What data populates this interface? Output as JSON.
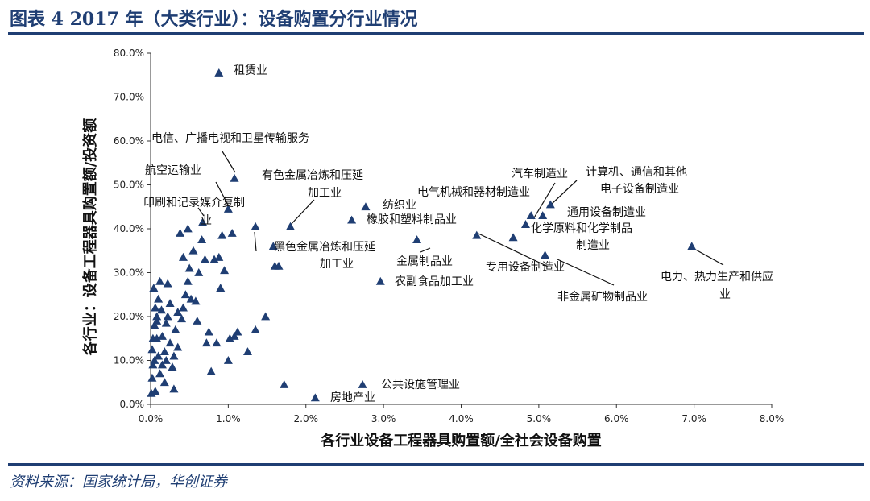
{
  "header": {
    "title": "图表 4   2017 年（大类行业）：设备购置分行业情况"
  },
  "footer": {
    "source": "资料来源：国家统计局，华创证券"
  },
  "chart_data": {
    "type": "scatter",
    "xlabel": "各行业设备工程器具购置额/全社会设备购置",
    "ylabel": "各行业：设备工程器具购置额/投资额",
    "xlim": [
      0,
      8
    ],
    "ylim": [
      0,
      80
    ],
    "x_ticks": [
      "0.0%",
      "1.0%",
      "2.0%",
      "3.0%",
      "4.0%",
      "5.0%",
      "6.0%",
      "7.0%",
      "8.0%"
    ],
    "y_ticks": [
      "0.0%",
      "10.0%",
      "20.0%",
      "30.0%",
      "40.0%",
      "50.0%",
      "60.0%",
      "70.0%",
      "80.0%"
    ],
    "marker": "triangle",
    "marker_color": "#1f3e73",
    "labeled_points": [
      {
        "name": "租赁业",
        "x": 0.88,
        "y": 75.5
      },
      {
        "name": "电信、广播电视和卫星传输服务",
        "x": 1.08,
        "y": 51.5
      },
      {
        "name": "航空运输业",
        "x": 1.0,
        "y": 44.5
      },
      {
        "name": "印刷和记录媒介复制业",
        "x": 0.67,
        "y": 41.5
      },
      {
        "name": "有色金属冶炼和压延加工业",
        "x": 1.8,
        "y": 40.5
      },
      {
        "name": "纺织业",
        "x": 2.77,
        "y": 45.0
      },
      {
        "name": "橡胶和塑料制品业",
        "x": 2.59,
        "y": 42.0
      },
      {
        "name": "黑色金属冶炼和压延加工业",
        "x": 1.35,
        "y": 40.5
      },
      {
        "name": "金属制品业",
        "x": 3.43,
        "y": 37.5
      },
      {
        "name": "农副食品加工业",
        "x": 2.96,
        "y": 28.0
      },
      {
        "name": "电气机械和器材制造业",
        "x": 4.2,
        "y": 38.5
      },
      {
        "name": "汽车制造业",
        "x": 4.9,
        "y": 43.0
      },
      {
        "name": "计算机、通信和其他电子设备制造业",
        "x": 5.15,
        "y": 45.5
      },
      {
        "name": "通用设备制造业",
        "x": 5.05,
        "y": 43.0
      },
      {
        "name": "化学原料和化学制品制造业",
        "x": 4.83,
        "y": 41.0
      },
      {
        "name": "专用设备制造业",
        "x": 4.67,
        "y": 38.0
      },
      {
        "name": "非金属矿物制品业",
        "x": 5.08,
        "y": 34.0
      },
      {
        "name": "电力、热力生产和供应业",
        "x": 6.97,
        "y": 36.0
      },
      {
        "name": "公共设施管理业",
        "x": 2.73,
        "y": 4.5
      },
      {
        "name": "房地产业",
        "x": 2.12,
        "y": 1.5
      }
    ],
    "unlabeled_points": [
      [
        0.01,
        2.5
      ],
      [
        0.02,
        6
      ],
      [
        0.03,
        9
      ],
      [
        0.05,
        10
      ],
      [
        0.02,
        12.5
      ],
      [
        0.03,
        15
      ],
      [
        0.05,
        18
      ],
      [
        0.08,
        20
      ],
      [
        0.06,
        22
      ],
      [
        0.1,
        24
      ],
      [
        0.04,
        26.5
      ],
      [
        0.12,
        28
      ],
      [
        0.08,
        19
      ],
      [
        0.1,
        11
      ],
      [
        0.12,
        7
      ],
      [
        0.15,
        9
      ],
      [
        0.18,
        12
      ],
      [
        0.15,
        15.5
      ],
      [
        0.2,
        18.5
      ],
      [
        0.22,
        20
      ],
      [
        0.25,
        14
      ],
      [
        0.28,
        8.5
      ],
      [
        0.3,
        11
      ],
      [
        0.32,
        17
      ],
      [
        0.35,
        13
      ],
      [
        0.4,
        19.5
      ],
      [
        0.42,
        22
      ],
      [
        0.45,
        25
      ],
      [
        0.48,
        28
      ],
      [
        0.5,
        31
      ],
      [
        0.55,
        35
      ],
      [
        0.38,
        39
      ],
      [
        0.48,
        40
      ],
      [
        0.52,
        24
      ],
      [
        0.6,
        19
      ],
      [
        0.62,
        30
      ],
      [
        0.66,
        37.5
      ],
      [
        0.7,
        33
      ],
      [
        0.72,
        14
      ],
      [
        0.75,
        16.5
      ],
      [
        0.78,
        7.5
      ],
      [
        0.82,
        33
      ],
      [
        0.85,
        14
      ],
      [
        0.88,
        33.5
      ],
      [
        0.9,
        26.5
      ],
      [
        0.92,
        38.5
      ],
      [
        0.95,
        30.5
      ],
      [
        1.0,
        10
      ],
      [
        1.02,
        15
      ],
      [
        1.05,
        39
      ],
      [
        1.08,
        15.5
      ],
      [
        1.12,
        16.5
      ],
      [
        1.25,
        12
      ],
      [
        1.35,
        17
      ],
      [
        1.48,
        20
      ],
      [
        1.58,
        36
      ],
      [
        1.6,
        31.5
      ],
      [
        1.65,
        31.5
      ],
      [
        1.72,
        4.5
      ],
      [
        0.14,
        21.5
      ],
      [
        0.22,
        27.5
      ],
      [
        0.08,
        15
      ],
      [
        0.3,
        3.5
      ],
      [
        0.18,
        5
      ],
      [
        0.06,
        3
      ],
      [
        0.35,
        21
      ],
      [
        0.42,
        33.5
      ],
      [
        0.58,
        23.5
      ],
      [
        0.2,
        10
      ],
      [
        0.25,
        23
      ]
    ]
  }
}
